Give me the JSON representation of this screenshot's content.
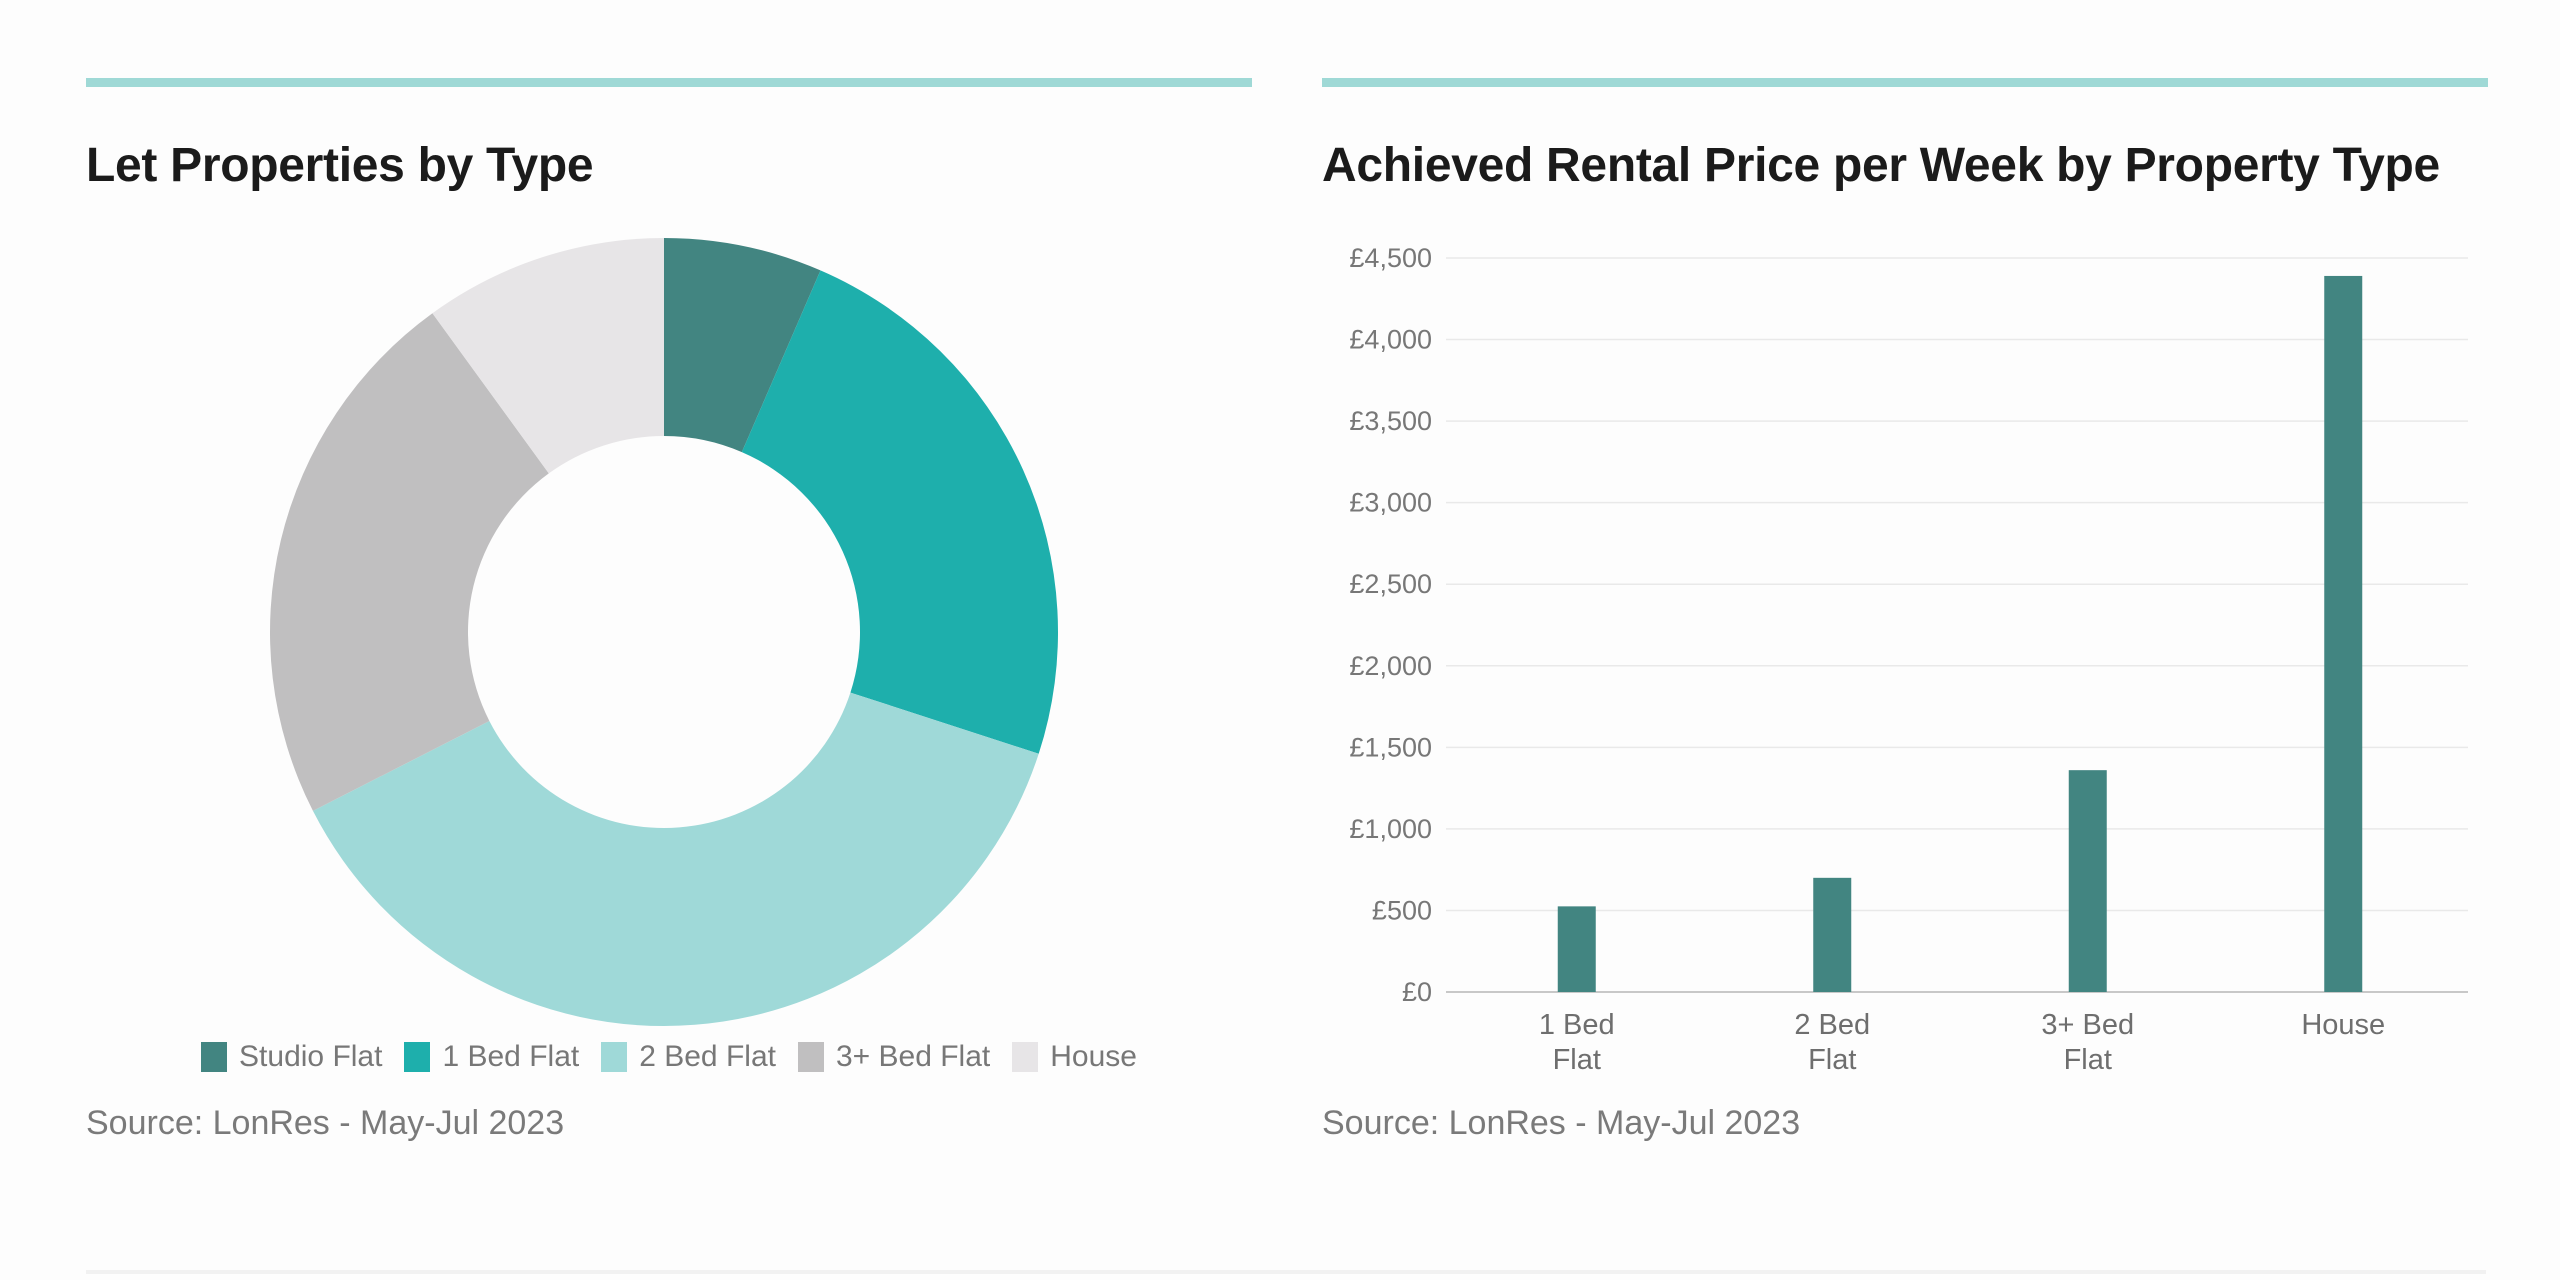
{
  "left_panel": {
    "title": "Let Properties by Type",
    "source": "Source: LonRes - May-Jul 2023"
  },
  "right_panel": {
    "title": "Achieved Rental Price per Week by Property Type",
    "source": "Source: LonRes - May-Jul 2023"
  },
  "colors": {
    "accent": "#9fd9d6",
    "studio": "#428581",
    "one_bed": "#1eafac",
    "two_bed": "#9fd9d8",
    "three_bed": "#c0bfc0",
    "house": "#e7e5e7",
    "bar": "#428581"
  },
  "chart_data": [
    {
      "type": "pie",
      "variant": "donut",
      "title": "Let Properties by Type",
      "legend_position": "bottom",
      "labels": [
        "Studio Flat",
        "1 Bed Flat",
        "2 Bed Flat",
        "3+ Bed Flat",
        "House"
      ],
      "values": [
        6.5,
        23.5,
        37.5,
        22.5,
        10.0
      ],
      "colors": [
        "#428581",
        "#1eafac",
        "#9fd9d8",
        "#c0bfc0",
        "#e7e5e7"
      ]
    },
    {
      "type": "bar",
      "title": "Achieved Rental Price per Week by Property Type",
      "categories": [
        [
          "1 Bed",
          "Flat"
        ],
        [
          "2 Bed",
          "Flat"
        ],
        [
          "3+ Bed",
          "Flat"
        ],
        [
          "House"
        ]
      ],
      "values": [
        525,
        700,
        1360,
        4390
      ],
      "ylim": [
        0,
        4500
      ],
      "yticks": [
        {
          "value": 0,
          "label": "£0"
        },
        {
          "value": 500,
          "label": "£500"
        },
        {
          "value": 1000,
          "label": "£1,000"
        },
        {
          "value": 1500,
          "label": "£1,500"
        },
        {
          "value": 2000,
          "label": "£2,000"
        },
        {
          "value": 2500,
          "label": "£2,500"
        },
        {
          "value": 3000,
          "label": "£3,000"
        },
        {
          "value": 3500,
          "label": "£3,500"
        },
        {
          "value": 4000,
          "label": "£4,000"
        },
        {
          "value": 4500,
          "label": "£4,500"
        }
      ],
      "grid": true,
      "legend": "none"
    }
  ]
}
